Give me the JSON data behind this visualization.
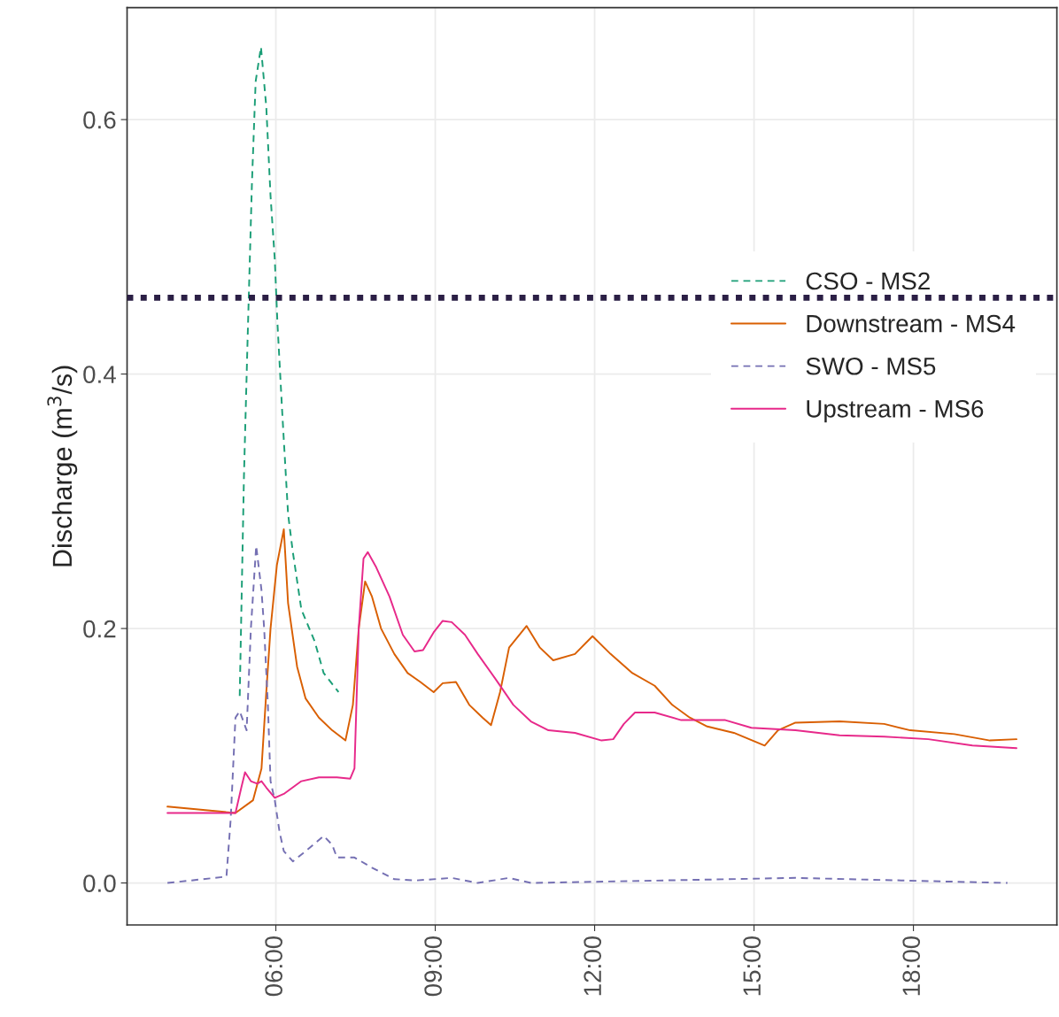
{
  "chart_data": {
    "type": "line",
    "ylabel": "Discharge (m$^{3}$/s)",
    "xlim": [
      3.2,
      20.7
    ],
    "xticks": [
      {
        "value": 6,
        "label": "06:00"
      },
      {
        "value": 9,
        "label": "09:00"
      },
      {
        "value": 12,
        "label": "12:00"
      },
      {
        "value": 15,
        "label": "15:00"
      },
      {
        "value": 18,
        "label": "18:00"
      }
    ],
    "ylim": [
      -0.033,
      0.688
    ],
    "yticks": [
      {
        "value": 0,
        "label": "0.0"
      },
      0.2,
      0.4,
      0.6
    ],
    "grid": true,
    "legend": "right",
    "marker": "none",
    "ref_lines": [
      {
        "axis": "y",
        "value": 0.46,
        "color": "#2b1f45",
        "line_style": "dotted"
      }
    ],
    "series": [
      {
        "name": "CSO - MS2",
        "color": "#1b9e77",
        "line_style": "dashed",
        "x": [
          5.32,
          5.4,
          5.47,
          5.55,
          5.62,
          5.72,
          5.82,
          5.9,
          5.98,
          6.03,
          6.12,
          6.23,
          6.32,
          6.48,
          6.73,
          6.9,
          7.18
        ],
        "values": [
          0.147,
          0.32,
          0.43,
          0.55,
          0.63,
          0.657,
          0.61,
          0.54,
          0.49,
          0.44,
          0.37,
          0.29,
          0.26,
          0.215,
          0.19,
          0.165,
          0.15
        ]
      },
      {
        "name": "Downstream - MS4",
        "color": "#d95f02",
        "line_style": "solid",
        "x": [
          3.96,
          5.24,
          5.57,
          5.73,
          5.82,
          5.9,
          6.02,
          6.15,
          6.23,
          6.4,
          6.56,
          6.81,
          7.06,
          7.31,
          7.45,
          7.56,
          7.68,
          7.81,
          7.98,
          8.23,
          8.48,
          8.72,
          8.97,
          9.14,
          9.39,
          9.64,
          9.89,
          10.05,
          10.22,
          10.39,
          10.72,
          10.97,
          11.22,
          11.63,
          11.96,
          12.3,
          12.71,
          13.13,
          13.46,
          13.79,
          14.12,
          14.62,
          15.2,
          15.45,
          15.78,
          16.61,
          17.45,
          17.94,
          18.77,
          19.44,
          19.94
        ],
        "values": [
          0.06,
          0.055,
          0.065,
          0.09,
          0.15,
          0.2,
          0.25,
          0.278,
          0.22,
          0.17,
          0.145,
          0.13,
          0.12,
          0.112,
          0.14,
          0.2,
          0.237,
          0.225,
          0.2,
          0.18,
          0.165,
          0.158,
          0.15,
          0.157,
          0.158,
          0.14,
          0.13,
          0.124,
          0.15,
          0.185,
          0.202,
          0.185,
          0.175,
          0.18,
          0.194,
          0.18,
          0.165,
          0.155,
          0.14,
          0.13,
          0.123,
          0.118,
          0.108,
          0.12,
          0.126,
          0.127,
          0.125,
          0.12,
          0.117,
          0.112,
          0.113
        ]
      },
      {
        "name": "SWO - MS5",
        "color": "#7570b3",
        "line_style": "dashed",
        "x": [
          3.96,
          5.07,
          5.15,
          5.24,
          5.32,
          5.45,
          5.53,
          5.63,
          5.73,
          5.78,
          5.85,
          5.9,
          5.98,
          6.07,
          6.15,
          6.32,
          6.56,
          6.9,
          7.06,
          7.15,
          7.48,
          7.81,
          8.23,
          8.64,
          9.31,
          9.8,
          10.39,
          10.8,
          15.78,
          19.77
        ],
        "values": [
          0,
          0.005,
          0.05,
          0.13,
          0.135,
          0.12,
          0.2,
          0.265,
          0.23,
          0.2,
          0.14,
          0.08,
          0.065,
          0.04,
          0.025,
          0.017,
          0.025,
          0.037,
          0.03,
          0.02,
          0.02,
          0.012,
          0.003,
          0.002,
          0.004,
          0,
          0.004,
          0,
          0.004,
          0
        ]
      },
      {
        "name": "Upstream - MS6",
        "color": "#e7298a",
        "line_style": "solid",
        "x": [
          3.96,
          5.24,
          5.35,
          5.42,
          5.53,
          5.65,
          5.73,
          5.82,
          5.98,
          6.15,
          6.48,
          6.81,
          7.15,
          7.4,
          7.48,
          7.56,
          7.65,
          7.73,
          7.89,
          8.14,
          8.39,
          8.61,
          8.77,
          8.97,
          9.14,
          9.31,
          9.56,
          9.8,
          10.14,
          10.47,
          10.8,
          11.13,
          11.63,
          12.13,
          12.35,
          12.55,
          12.76,
          13.13,
          13.63,
          14.46,
          14.95,
          15.78,
          16.61,
          17.45,
          18.28,
          19.11,
          19.94
        ],
        "values": [
          0.055,
          0.055,
          0.075,
          0.087,
          0.08,
          0.078,
          0.08,
          0.075,
          0.067,
          0.07,
          0.08,
          0.083,
          0.083,
          0.082,
          0.09,
          0.2,
          0.255,
          0.26,
          0.248,
          0.225,
          0.195,
          0.182,
          0.183,
          0.197,
          0.206,
          0.205,
          0.195,
          0.18,
          0.16,
          0.14,
          0.127,
          0.12,
          0.118,
          0.112,
          0.113,
          0.125,
          0.134,
          0.134,
          0.128,
          0.128,
          0.122,
          0.12,
          0.116,
          0.115,
          0.113,
          0.108,
          0.106
        ]
      }
    ]
  }
}
